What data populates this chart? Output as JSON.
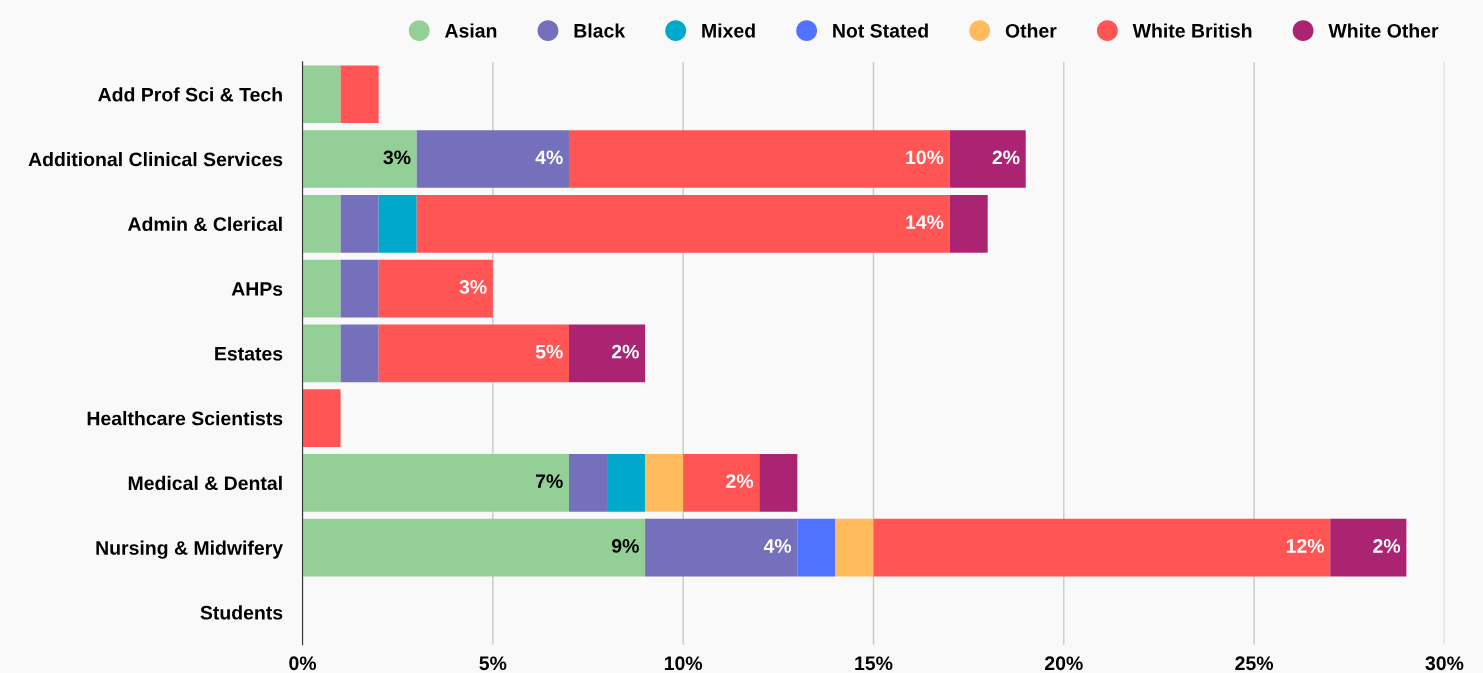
{
  "chart_data": {
    "type": "bar",
    "orientation": "horizontal",
    "stacked": true,
    "grid": "x",
    "legend": "top",
    "categories": [
      "Add Prof Sci & Tech",
      "Additional Clinical Services",
      "Admin & Clerical",
      "AHPs",
      "Estates",
      "Healthcare Scientists",
      "Medical & Dental",
      "Nursing & Midwifery",
      "Students"
    ],
    "xlim": [
      0,
      30
    ],
    "xticks": [
      {
        "value": 0,
        "label": "0%"
      },
      {
        "value": 5,
        "label": "5%"
      },
      {
        "value": 10,
        "label": "10%"
      },
      {
        "value": 15,
        "label": "15%"
      },
      {
        "value": 20,
        "label": "20%"
      },
      {
        "value": 25,
        "label": "25%"
      },
      {
        "value": 30,
        "label": "30%"
      }
    ],
    "series": [
      {
        "name": "Asian",
        "color": "#93cf96",
        "values": [
          1,
          3,
          1,
          1,
          1,
          null,
          7,
          9,
          null
        ],
        "value_labels": [
          null,
          "3%",
          null,
          null,
          null,
          null,
          "7%",
          "9%",
          null
        ]
      },
      {
        "name": "Black",
        "color": "#7570bb",
        "values": [
          null,
          4,
          1,
          1,
          1,
          null,
          1,
          4,
          null
        ],
        "value_labels": [
          null,
          "4%",
          null,
          null,
          null,
          null,
          null,
          "4%",
          null
        ]
      },
      {
        "name": "Mixed",
        "color": "#00a9cc",
        "values": [
          null,
          null,
          1,
          null,
          null,
          null,
          1,
          null,
          null
        ]
      },
      {
        "name": "Not Stated",
        "color": "#4f73ff",
        "values": [
          null,
          null,
          null,
          null,
          null,
          null,
          null,
          1,
          null
        ]
      },
      {
        "name": "Other",
        "color": "#ffbb5c",
        "values": [
          null,
          null,
          null,
          null,
          null,
          null,
          1,
          1,
          null
        ]
      },
      {
        "name": "White British",
        "color": "#ff5555",
        "values": [
          1,
          10,
          14,
          3,
          5,
          1,
          2,
          12,
          null
        ],
        "value_labels": [
          null,
          "10%",
          "14%",
          "3%",
          "5%",
          null,
          "2%",
          "12%",
          null
        ]
      },
      {
        "name": "White Other",
        "color": "#ab2472",
        "values": [
          null,
          2,
          1,
          null,
          2,
          null,
          1,
          2,
          null
        ],
        "value_labels": [
          null,
          "2%",
          null,
          null,
          "2%",
          null,
          null,
          "2%",
          null
        ]
      }
    ]
  }
}
